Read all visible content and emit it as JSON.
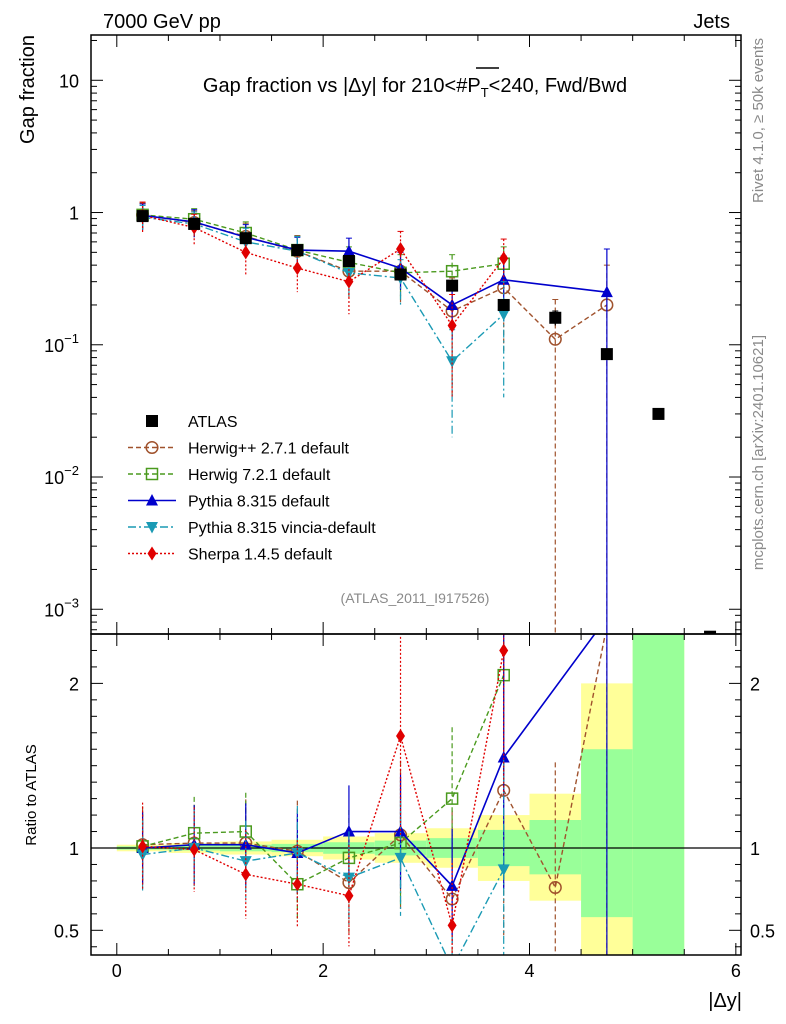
{
  "header": {
    "energy_label": "7000 GeV pp",
    "category_label": "Jets"
  },
  "side_labels": {
    "rivet": "Rivet 4.1.0, ≥ 50k events",
    "mcplots": "mcplots.cern.ch [arXiv:2401.10621]"
  },
  "chart_data": {
    "type": "scatter",
    "title": "Gap fraction vs |Δy| for 210<#P̅T<240, Fwd/Bwd",
    "title_parts": {
      "pre": "Gap fraction vs |Δy| for 210<#",
      "P": "P",
      "T": "T",
      "post": "<240, Fwd/Bwd"
    },
    "xlabel": "|Δy|",
    "ylabel": "Gap fraction",
    "ratio_ylabel": "Ratio to ATLAS",
    "reference": "(ATLAS_2011_I917526)",
    "xlim": [
      -0.25,
      6.05
    ],
    "ylim": [
      0.00065,
      22
    ],
    "ratio_ylim": [
      0.35,
      2.3
    ],
    "yscale": "log",
    "x_ticks": [
      {
        "v": 0,
        "label": "0"
      },
      {
        "v": 2,
        "label": "2"
      },
      {
        "v": 4,
        "label": "4"
      },
      {
        "v": 6,
        "label": "6"
      }
    ],
    "y_ticks": [
      {
        "v": 10,
        "base": "10",
        "exp": ""
      },
      {
        "v": 1,
        "base": "1",
        "exp": ""
      },
      {
        "v": 0.1,
        "base": "10",
        "exp": "−1"
      },
      {
        "v": 0.01,
        "base": "10",
        "exp": "−2"
      },
      {
        "v": 0.001,
        "base": "10",
        "exp": "−3"
      }
    ],
    "ratio_ticks": [
      {
        "v": 0.5,
        "label": "0.5"
      },
      {
        "v": 1,
        "label": "1"
      },
      {
        "v": 2,
        "label": "2"
      }
    ],
    "band": [
      {
        "x0": 0.0,
        "x1": 0.5,
        "y1lo": 0.99,
        "y1hi": 1.01,
        "y2lo": 0.98,
        "y2hi": 1.02
      },
      {
        "x0": 0.5,
        "x1": 1.0,
        "y1lo": 0.985,
        "y1hi": 1.015,
        "y2lo": 0.97,
        "y2hi": 1.03
      },
      {
        "x0": 1.0,
        "x1": 1.5,
        "y1lo": 0.98,
        "y1hi": 1.02,
        "y2lo": 0.96,
        "y2hi": 1.04
      },
      {
        "x0": 1.5,
        "x1": 2.0,
        "y1lo": 0.975,
        "y1hi": 1.025,
        "y2lo": 0.95,
        "y2hi": 1.05
      },
      {
        "x0": 2.0,
        "x1": 2.5,
        "y1lo": 0.965,
        "y1hi": 1.035,
        "y2lo": 0.93,
        "y2hi": 1.07
      },
      {
        "x0": 2.5,
        "x1": 3.0,
        "y1lo": 0.955,
        "y1hi": 1.045,
        "y2lo": 0.91,
        "y2hi": 1.09
      },
      {
        "x0": 3.0,
        "x1": 3.5,
        "y1lo": 0.94,
        "y1hi": 1.06,
        "y2lo": 0.88,
        "y2hi": 1.12
      },
      {
        "x0": 3.5,
        "x1": 4.0,
        "y1lo": 0.89,
        "y1hi": 1.11,
        "y2lo": 0.8,
        "y2hi": 1.2
      },
      {
        "x0": 4.0,
        "x1": 4.5,
        "y1lo": 0.84,
        "y1hi": 1.17,
        "y2lo": 0.68,
        "y2hi": 1.33
      },
      {
        "x0": 4.5,
        "x1": 5.0,
        "y1lo": 0.58,
        "y1hi": 1.6,
        "y2lo": 0.35,
        "y2hi": 2.0
      },
      {
        "x0": 5.0,
        "x1": 5.5,
        "y1lo": 0.35,
        "y1hi": 2.3,
        "y2lo": 0.35,
        "y2hi": 2.3
      }
    ],
    "series": [
      {
        "name": "ATLAS",
        "color": "#000000",
        "marker": "square",
        "line": "none",
        "x": [
          0.25,
          0.75,
          1.25,
          1.75,
          2.25,
          2.75,
          3.25,
          3.75,
          4.25,
          4.75,
          5.25,
          5.75
        ],
        "y": [
          0.94,
          0.82,
          0.64,
          0.52,
          0.43,
          0.34,
          0.28,
          0.2,
          0.16,
          0.085,
          0.03,
          0.00062
        ],
        "err_lo": [
          0.02,
          0.02,
          0.02,
          0.02,
          0.02,
          0.02,
          0.02,
          0.02,
          0.02,
          0.007,
          0.002,
          0
        ],
        "err_hi": [
          0.02,
          0.02,
          0.02,
          0.02,
          0.02,
          0.02,
          0.02,
          0.02,
          0.02,
          0.007,
          0.002,
          0
        ],
        "ratio": []
      },
      {
        "name": "Herwig++ 2.7.1 default",
        "color": "#a0522d",
        "marker": "circle-open",
        "line": "dashed",
        "x": [
          0.25,
          0.75,
          1.25,
          1.75,
          2.25,
          2.75,
          3.25,
          3.75,
          4.25,
          4.75
        ],
        "y": [
          0.96,
          0.84,
          0.66,
          0.51,
          0.36,
          0.36,
          0.18,
          0.27,
          0.11,
          0.2
        ],
        "err_lo": [
          0.22,
          0.19,
          0.17,
          0.16,
          0.14,
          0.15,
          0.14,
          0.18,
          0.11,
          0.2
        ],
        "err_hi": [
          0.22,
          0.19,
          0.17,
          0.16,
          0.14,
          0.15,
          0.14,
          0.18,
          0.11,
          0.2
        ],
        "ratio": [
          1.02,
          1.03,
          1.03,
          0.98,
          0.79,
          1.08,
          0.69,
          1.35,
          0.76,
          2.35
        ]
      },
      {
        "name": "Herwig 7.2.1 default",
        "color": "#4a9a1e",
        "marker": "square-open",
        "line": "dashed",
        "x": [
          0.25,
          0.75,
          1.25,
          1.75,
          2.25,
          2.75,
          3.25,
          3.75
        ],
        "y": [
          0.96,
          0.89,
          0.7,
          0.52,
          0.42,
          0.35,
          0.36,
          0.41
        ],
        "err_lo": [
          0.2,
          0.18,
          0.15,
          0.14,
          0.13,
          0.13,
          0.12,
          0.14
        ],
        "err_hi": [
          0.2,
          0.18,
          0.15,
          0.14,
          0.13,
          0.13,
          0.12,
          0.14
        ],
        "ratio": [
          1.01,
          1.09,
          1.1,
          0.78,
          0.94,
          1.03,
          1.3,
          2.05
        ]
      },
      {
        "name": "Pythia 8.315 default",
        "color": "#0000cc",
        "marker": "triangle-up",
        "line": "solid",
        "x": [
          0.25,
          0.75,
          1.25,
          1.75,
          2.25,
          2.75,
          3.25,
          3.75,
          4.75
        ],
        "y": [
          0.95,
          0.85,
          0.65,
          0.52,
          0.51,
          0.38,
          0.2,
          0.31,
          0.25
        ],
        "err_lo": [
          0.21,
          0.2,
          0.16,
          0.13,
          0.13,
          0.12,
          0.09,
          0.16,
          0.25
        ],
        "err_hi": [
          0.21,
          0.2,
          0.16,
          0.13,
          0.13,
          0.12,
          0.09,
          0.16,
          0.28
        ],
        "ratio": [
          1.0,
          1.02,
          1.02,
          0.97,
          1.1,
          1.1,
          0.77,
          1.55,
          2.4
        ]
      },
      {
        "name": "Pythia 8.315 vincia-default",
        "color": "#1a9ab4",
        "marker": "triangle-down",
        "line": "dashdot",
        "x": [
          0.25,
          0.75,
          1.25,
          1.75,
          2.25,
          2.75,
          3.25,
          3.75
        ],
        "y": [
          0.92,
          0.82,
          0.6,
          0.51,
          0.35,
          0.32,
          0.075,
          0.17
        ],
        "err_lo": [
          0.21,
          0.19,
          0.16,
          0.15,
          0.12,
          0.12,
          0.055,
          0.13
        ],
        "err_hi": [
          0.21,
          0.19,
          0.16,
          0.15,
          0.12,
          0.12,
          0.055,
          0.13
        ],
        "ratio": [
          0.96,
          1.0,
          0.92,
          0.97,
          0.82,
          0.94,
          0.27,
          0.87
        ]
      },
      {
        "name": "Sherpa 1.4.5 default",
        "color": "#e00000",
        "marker": "diamond",
        "line": "dotted",
        "x": [
          0.25,
          0.75,
          1.25,
          1.75,
          2.25,
          2.75,
          3.25,
          3.75
        ],
        "y": [
          0.95,
          0.77,
          0.5,
          0.38,
          0.3,
          0.53,
          0.14,
          0.45
        ],
        "err_lo": [
          0.25,
          0.2,
          0.16,
          0.13,
          0.13,
          0.19,
          0.1,
          0.18
        ],
        "err_hi": [
          0.25,
          0.2,
          0.16,
          0.13,
          0.13,
          0.19,
          0.1,
          0.18
        ],
        "ratio": [
          1.01,
          0.99,
          0.84,
          0.78,
          0.71,
          1.68,
          0.53,
          2.2
        ]
      }
    ]
  }
}
